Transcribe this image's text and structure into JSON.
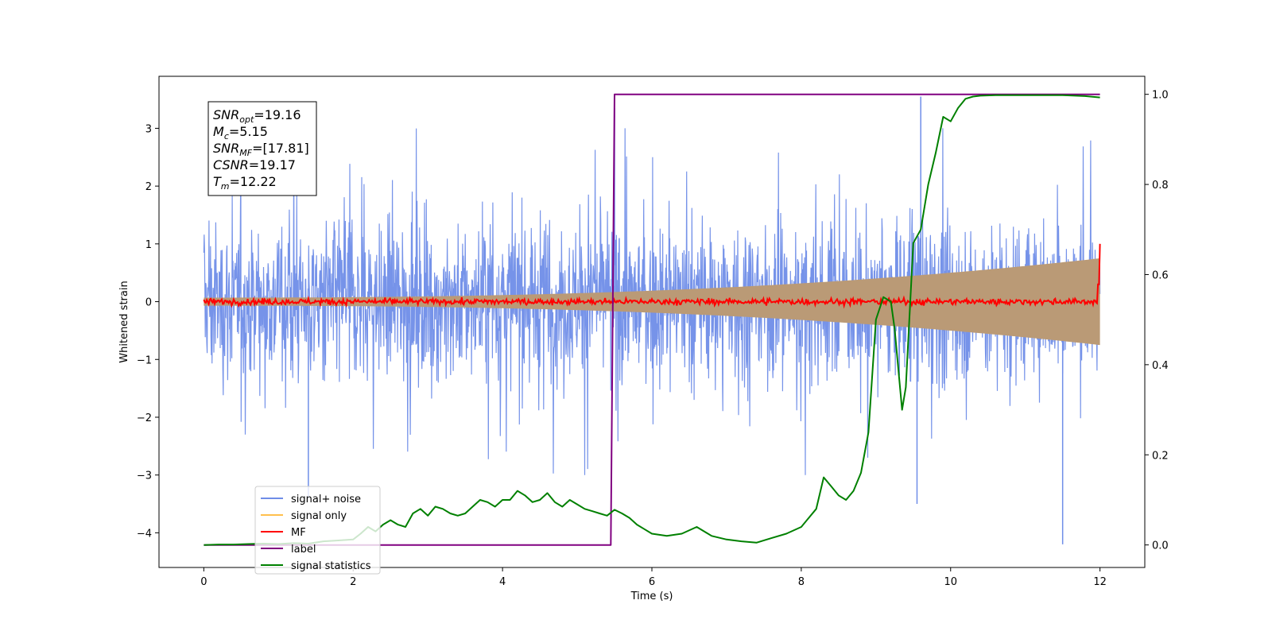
{
  "chart_data": {
    "type": "line",
    "title": "",
    "xlabel": "Time (s)",
    "ylabel": "Whitened strain",
    "xlim": [
      -0.6,
      12.6
    ],
    "ylim": [
      -4.6,
      3.9
    ],
    "y2lim": [
      -0.05,
      1.04
    ],
    "x_ticks": [
      0,
      2,
      4,
      6,
      8,
      10,
      12
    ],
    "y_ticks": [
      -4,
      -3,
      -2,
      -1,
      0,
      1,
      2,
      3
    ],
    "y2_ticks": [
      0.0,
      0.2,
      0.4,
      0.6,
      0.8,
      1.0
    ],
    "x_tick_labels": [
      "0",
      "2",
      "4",
      "6",
      "8",
      "10",
      "12"
    ],
    "y_tick_labels": [
      "−4",
      "−3",
      "−2",
      "−1",
      "0",
      "1",
      "2",
      "3"
    ],
    "y2_tick_labels": [
      "0.0",
      "0.2",
      "0.4",
      "0.6",
      "0.8",
      "1.0"
    ],
    "grid": false,
    "legend_placement": "lower-left",
    "stats_box": {
      "lines": [
        {
          "main": "SNR",
          "sub": "opt",
          "rest": "=19.16"
        },
        {
          "main": "M",
          "sub": "c",
          "rest": "=5.15"
        },
        {
          "main": "SNR",
          "sub": "MF",
          "rest": "=[17.81]"
        },
        {
          "main": "CSNR",
          "sub": "",
          "rest": "=19.17"
        },
        {
          "main": "T",
          "sub": "m",
          "rest": "=12.22"
        }
      ]
    },
    "series": [
      {
        "name": "signal+ noise",
        "color": "#6f8de8",
        "axis": "left",
        "kind": "noise",
        "range": [
          0,
          12
        ],
        "typical_amplitude": 1.0,
        "envelope_min": [
          -2.6,
          3.7
        ],
        "notable_extremes": [
          {
            "x": 1.4,
            "y": -3.4
          },
          {
            "x": 9.6,
            "y": 3.55
          },
          {
            "x": 9.55,
            "y": -3.5
          },
          {
            "x": 11.5,
            "y": -4.2
          },
          {
            "x": 5.5,
            "y": 3.35
          }
        ]
      },
      {
        "name": "signal only",
        "color": "#ffc04d",
        "axis": "left",
        "kind": "chirp",
        "range": [
          0,
          12
        ],
        "amplitude_start": 0.07,
        "amplitude_end": 0.75
      },
      {
        "name": "MF",
        "color": "#ff0000",
        "axis": "left",
        "kind": "noise",
        "range": [
          0,
          12
        ],
        "typical_amplitude": 0.04,
        "end_value": 1.0
      },
      {
        "name": "label",
        "color": "#800080",
        "axis": "right",
        "x": [
          0,
          5.45,
          5.5,
          12
        ],
        "y": [
          0.0,
          0.0,
          1.0,
          1.0
        ]
      },
      {
        "name": "signal statistics",
        "color": "#008000",
        "axis": "right",
        "x": [
          0,
          0.2,
          0.4,
          0.6,
          0.8,
          1.0,
          1.2,
          1.4,
          1.6,
          1.8,
          2.0,
          2.1,
          2.2,
          2.3,
          2.4,
          2.5,
          2.6,
          2.7,
          2.8,
          2.9,
          3.0,
          3.1,
          3.2,
          3.3,
          3.4,
          3.5,
          3.6,
          3.7,
          3.8,
          3.9,
          4.0,
          4.1,
          4.2,
          4.3,
          4.4,
          4.5,
          4.6,
          4.7,
          4.8,
          4.9,
          5.0,
          5.1,
          5.2,
          5.3,
          5.4,
          5.5,
          5.6,
          5.7,
          5.8,
          5.9,
          6.0,
          6.2,
          6.4,
          6.6,
          6.8,
          7.0,
          7.2,
          7.4,
          7.6,
          7.8,
          8.0,
          8.1,
          8.2,
          8.3,
          8.4,
          8.5,
          8.6,
          8.7,
          8.8,
          8.9,
          9.0,
          9.1,
          9.2,
          9.25,
          9.35,
          9.4,
          9.5,
          9.6,
          9.7,
          9.8,
          9.9,
          10.0,
          10.1,
          10.2,
          10.3,
          10.4,
          10.6,
          10.8,
          11.0,
          11.5,
          11.8,
          12.0
        ],
        "y": [
          0.0,
          0.001,
          0.001,
          0.002,
          0.003,
          0.002,
          0.004,
          0.003,
          0.008,
          0.01,
          0.012,
          0.025,
          0.04,
          0.03,
          0.045,
          0.055,
          0.045,
          0.04,
          0.07,
          0.08,
          0.065,
          0.085,
          0.08,
          0.07,
          0.065,
          0.07,
          0.085,
          0.1,
          0.095,
          0.085,
          0.1,
          0.1,
          0.12,
          0.11,
          0.095,
          0.1,
          0.115,
          0.095,
          0.085,
          0.1,
          0.09,
          0.08,
          0.075,
          0.07,
          0.065,
          0.078,
          0.07,
          0.06,
          0.045,
          0.035,
          0.025,
          0.02,
          0.025,
          0.04,
          0.02,
          0.012,
          0.008,
          0.005,
          0.015,
          0.025,
          0.04,
          0.06,
          0.08,
          0.15,
          0.13,
          0.11,
          0.1,
          0.12,
          0.16,
          0.25,
          0.5,
          0.55,
          0.54,
          0.48,
          0.3,
          0.35,
          0.67,
          0.7,
          0.8,
          0.87,
          0.95,
          0.94,
          0.97,
          0.99,
          0.995,
          0.997,
          0.998,
          0.998,
          0.998,
          0.998,
          0.996,
          0.993
        ]
      }
    ]
  }
}
